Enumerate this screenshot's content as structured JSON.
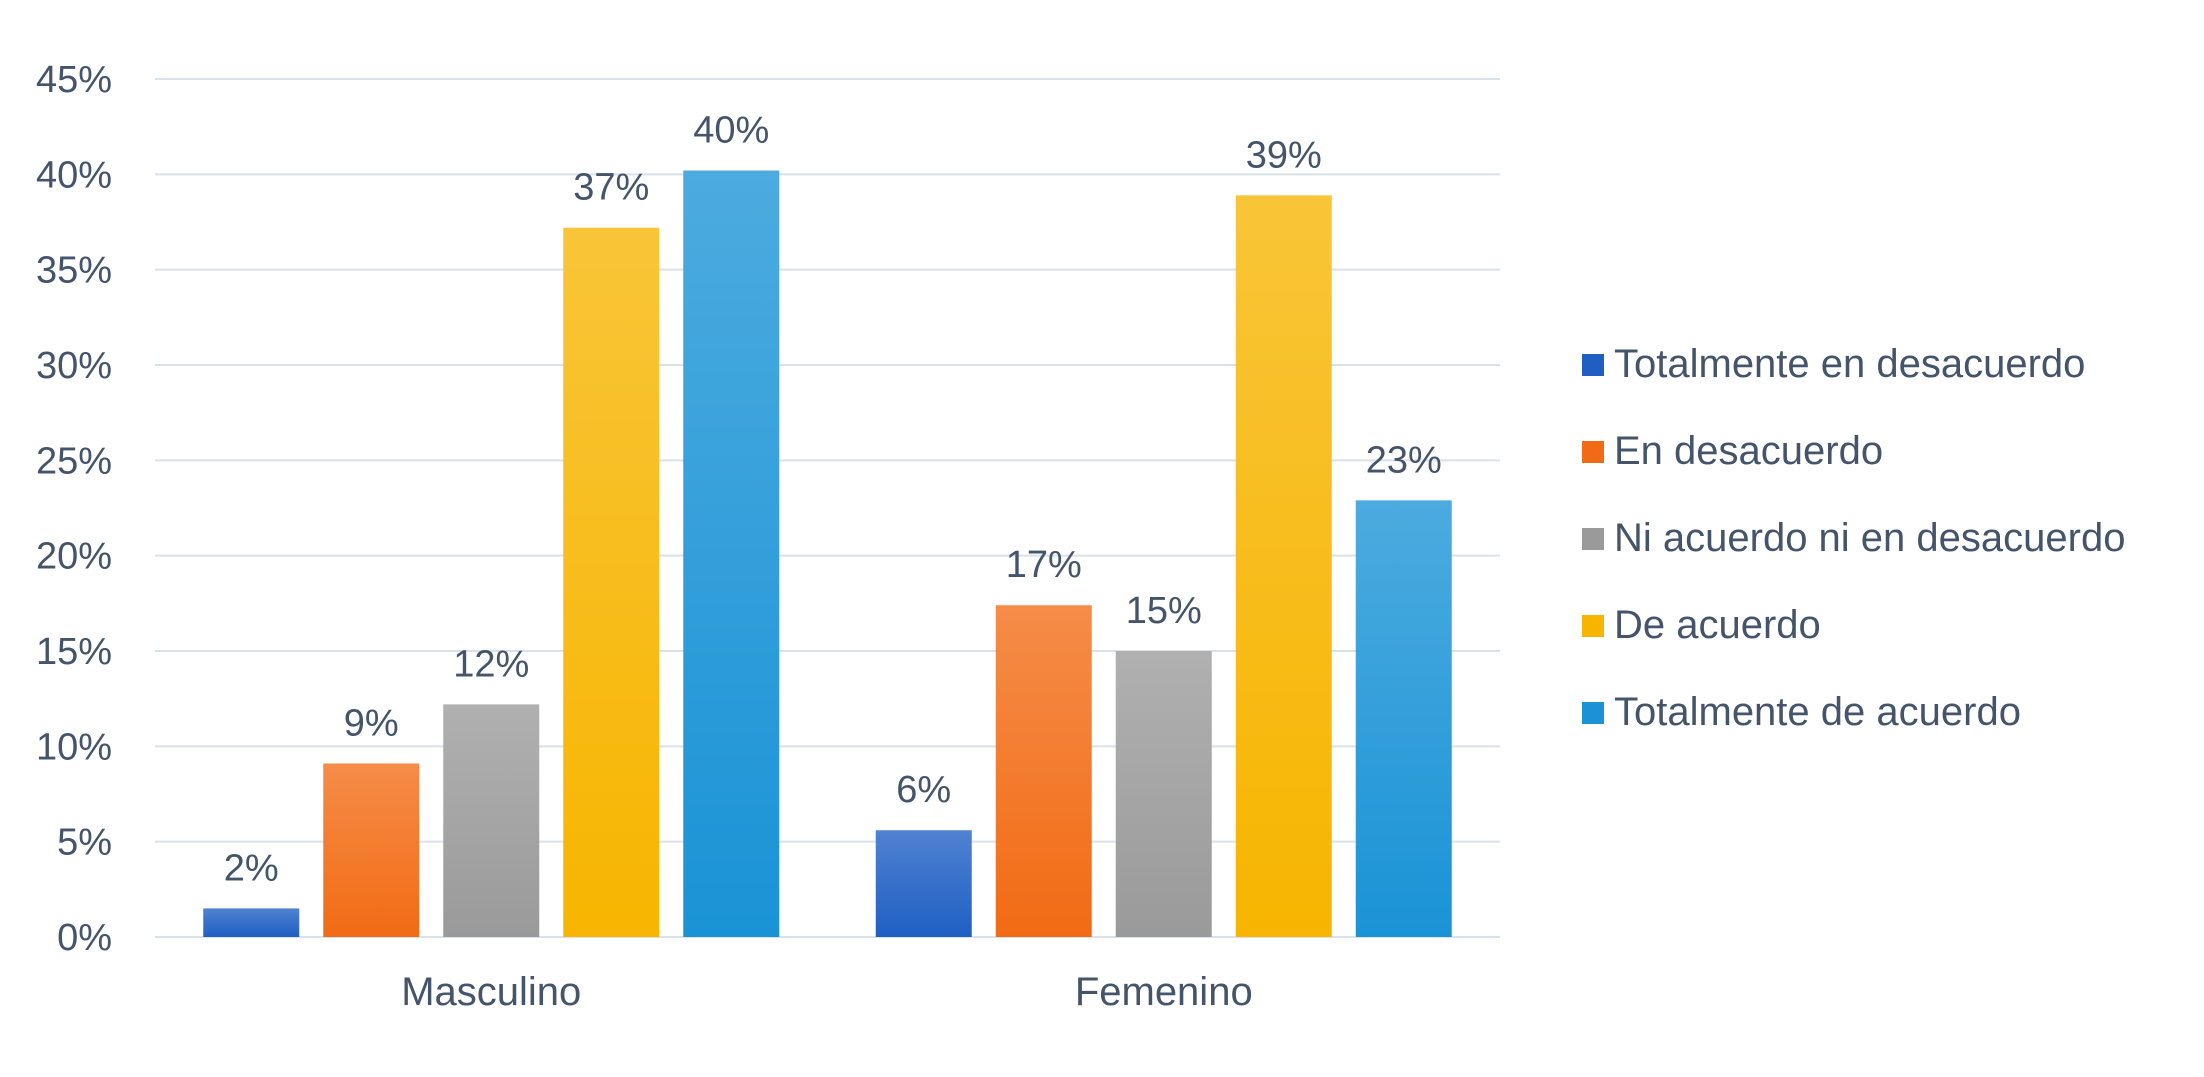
{
  "chart_data": {
    "type": "bar",
    "categories": [
      "Masculino",
      "Femenino"
    ],
    "series": [
      {
        "name": "Totalmente en desacuerdo",
        "values": [
          1.5,
          5.6
        ],
        "labels": [
          "2%",
          "6%"
        ],
        "color": "#1f5fc4"
      },
      {
        "name": "En desacuerdo",
        "values": [
          9.1,
          17.4
        ],
        "labels": [
          "9%",
          "17%"
        ],
        "color": "#f26b14"
      },
      {
        "name": "Ni acuerdo ni en desacuerdo",
        "values": [
          12.2,
          15.0
        ],
        "labels": [
          "12%",
          "15%"
        ],
        "color": "#9a9a9a"
      },
      {
        "name": "De acuerdo",
        "values": [
          37.2,
          38.9
        ],
        "labels": [
          "37%",
          "39%"
        ],
        "color": "#f7b500"
      },
      {
        "name": "Totalmente de acuerdo",
        "values": [
          40.2,
          22.9
        ],
        "labels": [
          "40%",
          "23%"
        ],
        "color": "#1a93d6"
      }
    ],
    "yticks": [
      "0%",
      "5%",
      "10%",
      "15%",
      "20%",
      "25%",
      "30%",
      "35%",
      "40%",
      "45%"
    ],
    "ylim": [
      0,
      45
    ],
    "grid": true,
    "legend_position": "right",
    "title": "",
    "xlabel": "",
    "ylabel": ""
  }
}
